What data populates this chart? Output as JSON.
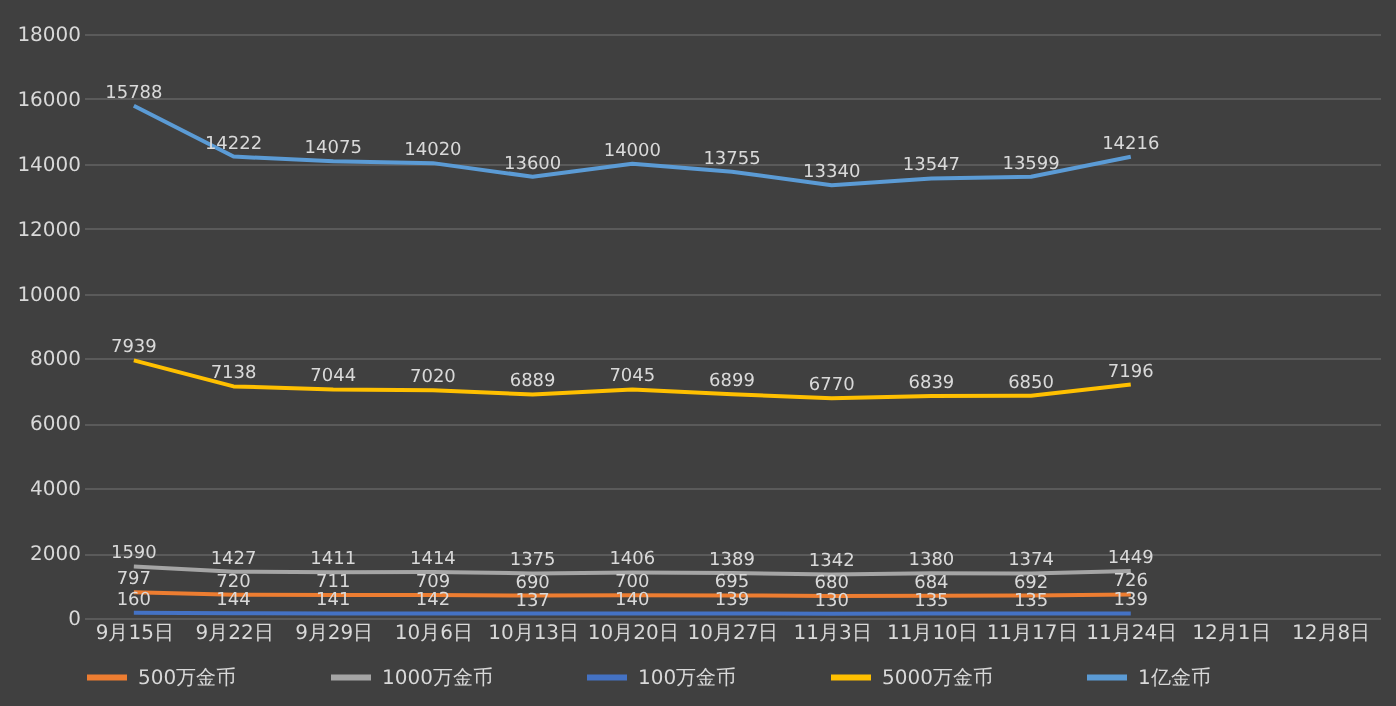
{
  "chart_data": {
    "type": "line",
    "categories": [
      "9月15日",
      "9月22日",
      "9月29日",
      "10月6日",
      "10月13日",
      "10月20日",
      "10月27日",
      "11月3日",
      "11月10日",
      "11月17日",
      "11月24日",
      "12月1日",
      "12月8日"
    ],
    "series": [
      {
        "name": "500万金币",
        "color": "#ed7d31",
        "values": [
          797,
          720,
          711,
          709,
          690,
          700,
          695,
          680,
          684,
          692,
          726,
          null,
          null
        ]
      },
      {
        "name": "1000万金币",
        "color": "#a5a5a5",
        "values": [
          1590,
          1427,
          1411,
          1414,
          1375,
          1406,
          1389,
          1342,
          1380,
          1374,
          1449,
          null,
          null
        ]
      },
      {
        "name": "100万金币",
        "color": "#4472c4",
        "values": [
          160,
          144,
          141,
          142,
          137,
          140,
          139,
          130,
          135,
          135,
          139,
          null,
          null
        ]
      },
      {
        "name": "5000万金币",
        "color": "#ffc000",
        "values": [
          7939,
          7138,
          7044,
          7020,
          6889,
          7045,
          6899,
          6770,
          6839,
          6850,
          7196,
          null,
          null
        ]
      },
      {
        "name": "1亿金币",
        "color": "#5b9bd5",
        "values": [
          15788,
          14222,
          14075,
          14020,
          13600,
          14000,
          13755,
          13340,
          13547,
          13599,
          14216,
          null,
          null
        ]
      }
    ],
    "ylim": [
      0,
      18000
    ],
    "yticks": [
      0,
      2000,
      4000,
      6000,
      8000,
      10000,
      12000,
      14000,
      16000,
      18000
    ],
    "grid": "y",
    "legend": "bottom",
    "data_labels": true,
    "marker": "none",
    "line_style": "solid"
  }
}
